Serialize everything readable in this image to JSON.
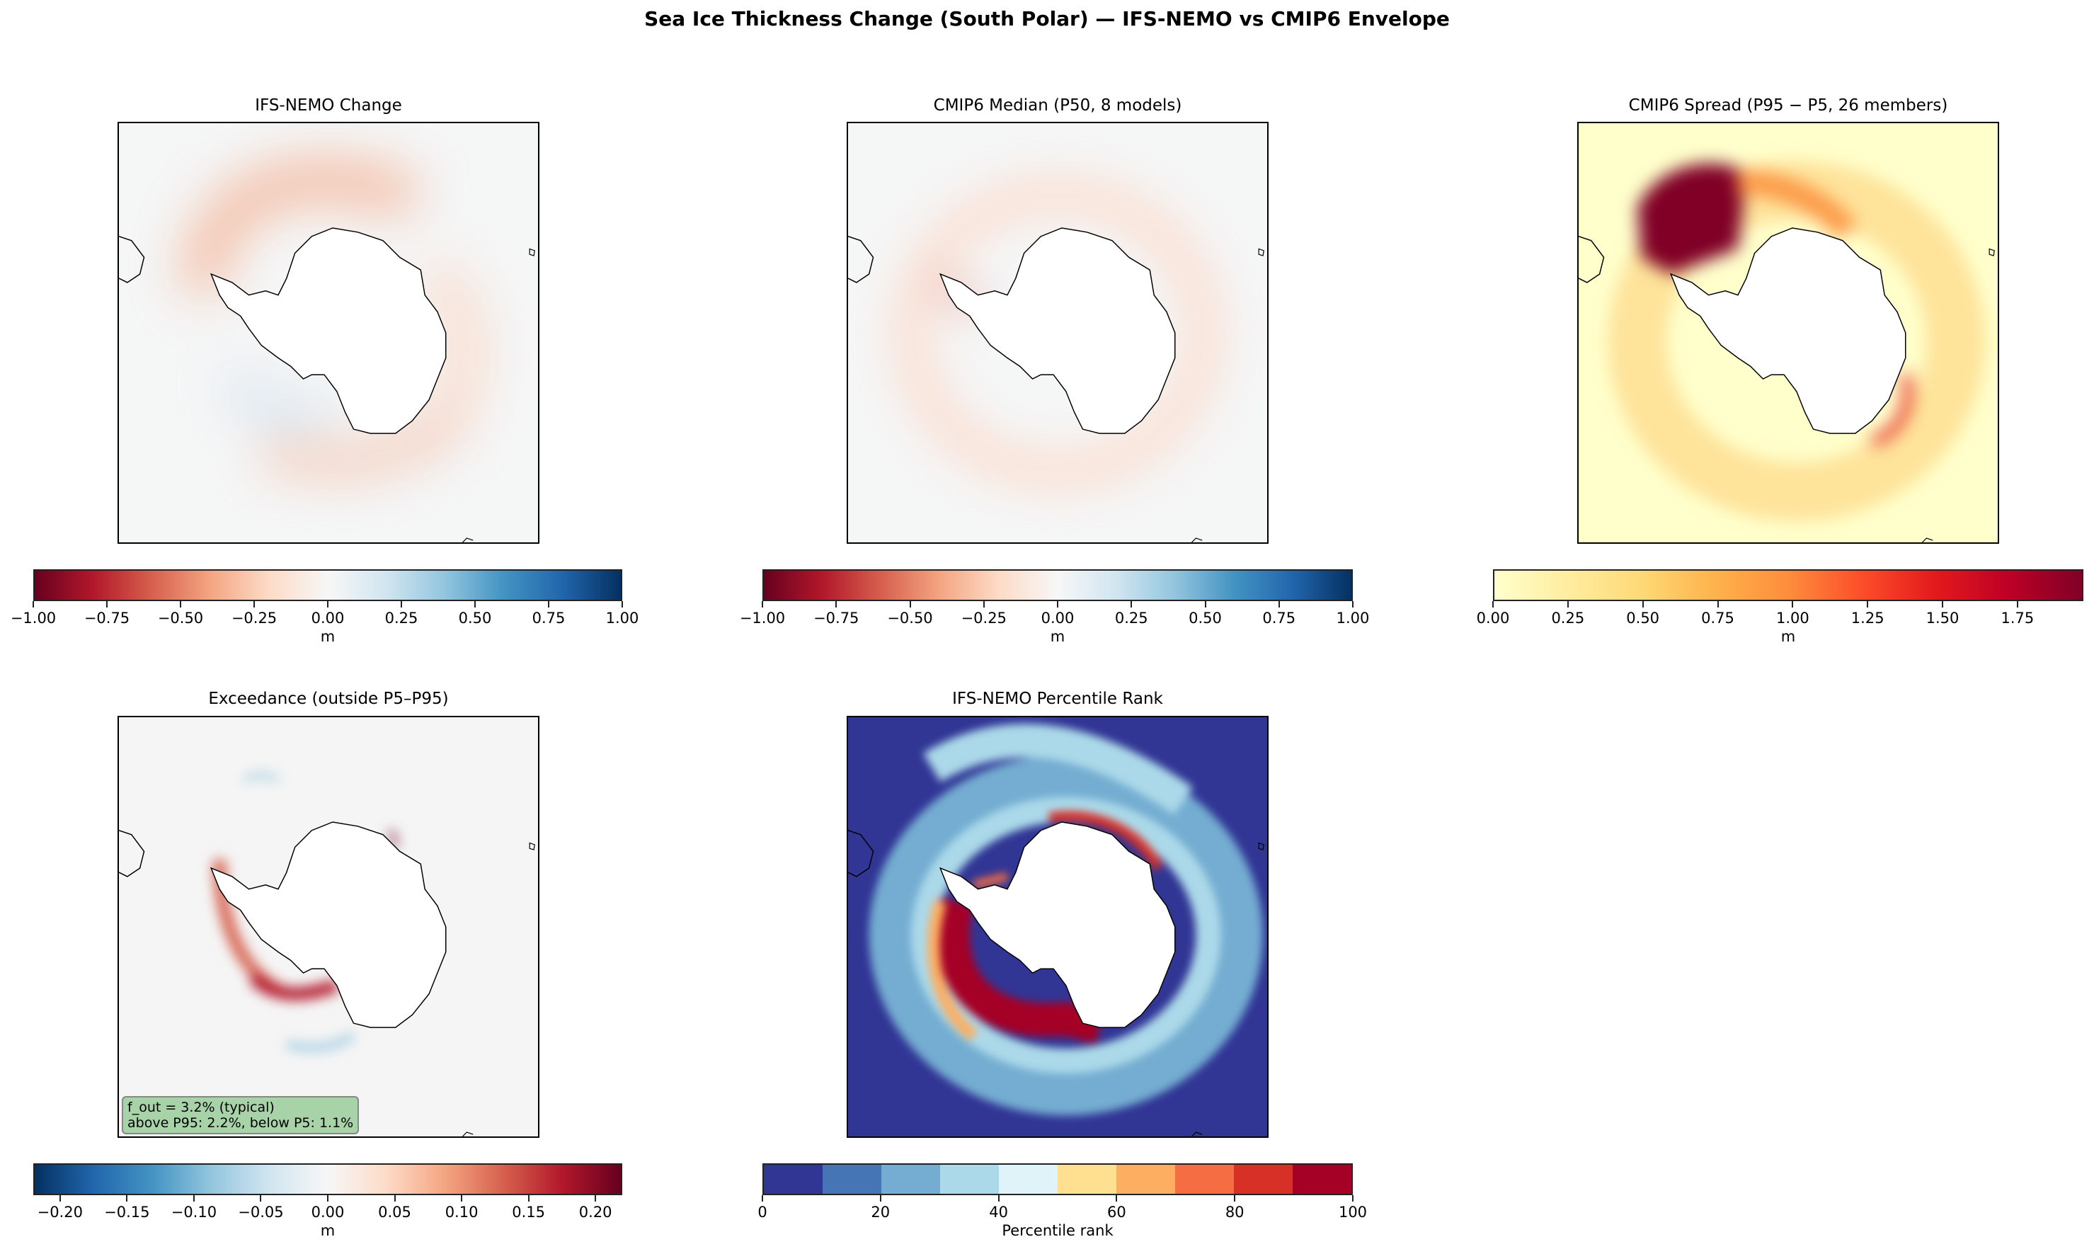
{
  "title": "Sea Ice Thickness Change (South Polar) — IFS-NEMO vs CMIP6 Envelope",
  "chart_data": [
    {
      "type": "heatmap",
      "title": "IFS-NEMO Change",
      "colormap": "RdBu",
      "colorbar": {
        "label": "m",
        "range": [
          -1.0,
          1.0
        ],
        "ticks": [
          "−1.00",
          "−0.75",
          "−0.50",
          "−0.25",
          "0.00",
          "0.25",
          "0.50",
          "0.75",
          "1.00"
        ]
      }
    },
    {
      "type": "heatmap",
      "title": "CMIP6 Median (P50, 8 models)",
      "colormap": "RdBu",
      "colorbar": {
        "label": "m",
        "range": [
          -1.0,
          1.0
        ],
        "ticks": [
          "−1.00",
          "−0.75",
          "−0.50",
          "−0.25",
          "0.00",
          "0.25",
          "0.50",
          "0.75",
          "1.00"
        ]
      }
    },
    {
      "type": "heatmap",
      "title": "CMIP6 Spread (P95 − P5, 26 members)",
      "colormap": "YlOrRd",
      "colorbar": {
        "label": "m",
        "range": [
          0,
          1.97
        ],
        "ticks": [
          "0.00",
          "0.25",
          "0.50",
          "0.75",
          "1.00",
          "1.25",
          "1.50",
          "1.75"
        ]
      }
    },
    {
      "type": "heatmap",
      "title": "Exceedance (outside P5–P95)",
      "colormap": "RdBu_r",
      "colorbar": {
        "label": "m",
        "range": [
          -0.22,
          0.22
        ],
        "ticks": [
          "−0.20",
          "−0.15",
          "−0.10",
          "−0.05",
          "0.00",
          "0.05",
          "0.10",
          "0.15",
          "0.20"
        ]
      },
      "annotation": {
        "line1": "f_out = 3.2% (typical)",
        "line2": "above P95: 2.2%, below P5: 1.1%",
        "color": "#a8d3a8"
      }
    },
    {
      "type": "heatmap",
      "title": "IFS-NEMO Percentile Rank",
      "colormap": "RdYlBu_r (10 discrete bins)",
      "colorbar": {
        "label": "Percentile rank",
        "range": [
          0,
          100
        ],
        "ticks": [
          "0",
          "20",
          "40",
          "60",
          "80",
          "100"
        ]
      }
    }
  ]
}
